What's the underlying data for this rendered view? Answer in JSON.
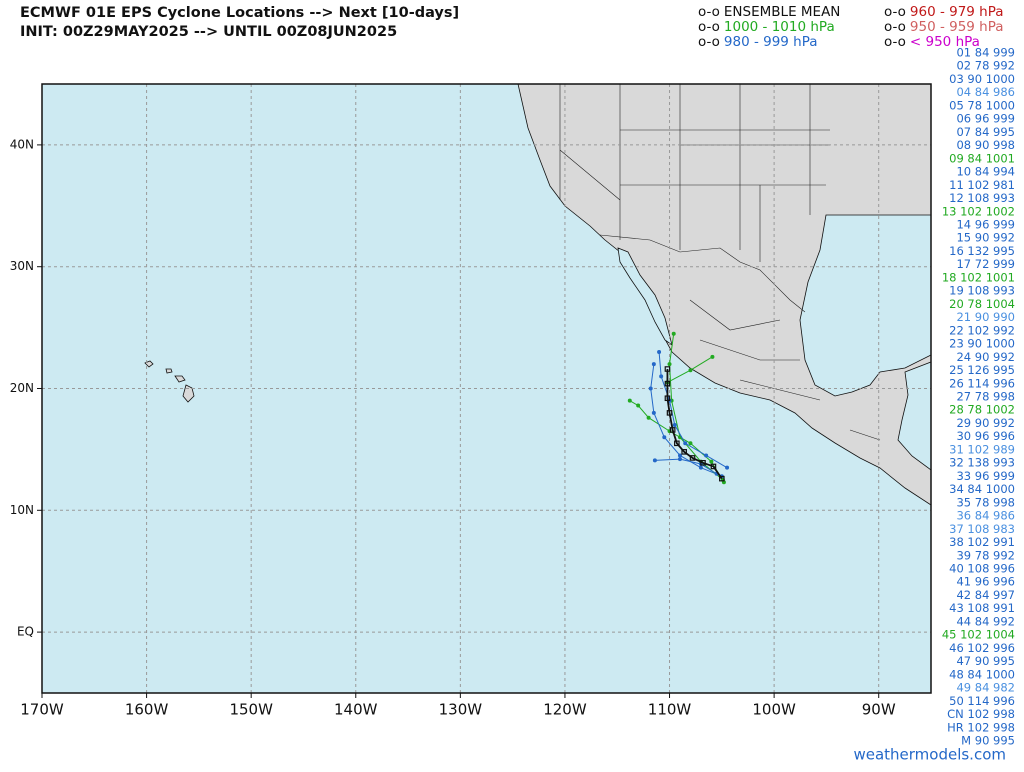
{
  "title": {
    "line1": "ECMWF 01E EPS Cyclone Locations --> Next [10-days]",
    "line2": "INIT: 00Z29MAY2025 --> UNTIL 00Z08JUN2025"
  },
  "legend": [
    {
      "marker": "o-o",
      "label": "ENSEMBLE MEAN",
      "color": "#111111"
    },
    {
      "marker": "o-o",
      "label": "1000 - 1010 hPa",
      "color": "#22aa22"
    },
    {
      "marker": "o-o",
      "label": "980 - 999 hPa",
      "color": "#2468c8"
    },
    {
      "marker": "o-o",
      "label": "960 - 979 hPa",
      "color": "#c01818"
    },
    {
      "marker": "o-o",
      "label": "950 - 959 hPa",
      "color": "#d06060"
    },
    {
      "marker": "o-o",
      "label": "< 950 hPa",
      "color": "#cc00cc"
    }
  ],
  "members": [
    {
      "text": "01 84 999",
      "color": "#2468c8"
    },
    {
      "text": "02 78 992",
      "color": "#2468c8"
    },
    {
      "text": "03 90 1000",
      "color": "#2468c8"
    },
    {
      "text": "04 84 986",
      "color": "#4a90e0"
    },
    {
      "text": "05 78 1000",
      "color": "#2468c8"
    },
    {
      "text": "06 96 999",
      "color": "#2468c8"
    },
    {
      "text": "07 84 995",
      "color": "#2468c8"
    },
    {
      "text": "08 90 998",
      "color": "#2468c8"
    },
    {
      "text": "09 84 1001",
      "color": "#22aa22"
    },
    {
      "text": "10 84 994",
      "color": "#2468c8"
    },
    {
      "text": "11 102 981",
      "color": "#2468c8"
    },
    {
      "text": "12 108 993",
      "color": "#2468c8"
    },
    {
      "text": "13 102 1002",
      "color": "#22aa22"
    },
    {
      "text": "14 96 999",
      "color": "#2468c8"
    },
    {
      "text": "15 90 992",
      "color": "#2468c8"
    },
    {
      "text": "16 132 995",
      "color": "#2468c8"
    },
    {
      "text": "17 72 999",
      "color": "#2468c8"
    },
    {
      "text": "18 102 1001",
      "color": "#22aa22"
    },
    {
      "text": "19 108 993",
      "color": "#2468c8"
    },
    {
      "text": "20 78 1004",
      "color": "#22aa22"
    },
    {
      "text": "21 90 990",
      "color": "#4a90e0"
    },
    {
      "text": "22 102 992",
      "color": "#2468c8"
    },
    {
      "text": "23 90 1000",
      "color": "#2468c8"
    },
    {
      "text": "24 90 992",
      "color": "#2468c8"
    },
    {
      "text": "25 126 995",
      "color": "#2468c8"
    },
    {
      "text": "26 114 996",
      "color": "#2468c8"
    },
    {
      "text": "27 78 998",
      "color": "#2468c8"
    },
    {
      "text": "28 78 1002",
      "color": "#22aa22"
    },
    {
      "text": "29 90 992",
      "color": "#2468c8"
    },
    {
      "text": "30 96 996",
      "color": "#2468c8"
    },
    {
      "text": "31 102 989",
      "color": "#4a90e0"
    },
    {
      "text": "32 138 993",
      "color": "#2468c8"
    },
    {
      "text": "33 96 999",
      "color": "#2468c8"
    },
    {
      "text": "34 84 1000",
      "color": "#2468c8"
    },
    {
      "text": "35 78 998",
      "color": "#2468c8"
    },
    {
      "text": "36 84 986",
      "color": "#4a90e0"
    },
    {
      "text": "37 108 983",
      "color": "#4a90e0"
    },
    {
      "text": "38 102 991",
      "color": "#2468c8"
    },
    {
      "text": "39 78 992",
      "color": "#2468c8"
    },
    {
      "text": "40 108 996",
      "color": "#2468c8"
    },
    {
      "text": "41 96 996",
      "color": "#2468c8"
    },
    {
      "text": "42 84 997",
      "color": "#2468c8"
    },
    {
      "text": "43 108 991",
      "color": "#2468c8"
    },
    {
      "text": "44 84 992",
      "color": "#2468c8"
    },
    {
      "text": "45 102 1004",
      "color": "#22aa22"
    },
    {
      "text": "46 102 996",
      "color": "#2468c8"
    },
    {
      "text": "47 90 995",
      "color": "#2468c8"
    },
    {
      "text": "48 84 1000",
      "color": "#2468c8"
    },
    {
      "text": "49 84 982",
      "color": "#4a90e0"
    },
    {
      "text": "50 114 996",
      "color": "#2468c8"
    },
    {
      "text": "CN 102 998",
      "color": "#2468c8"
    },
    {
      "text": "HR 102 998",
      "color": "#2468c8"
    },
    {
      "text": "M 90 995",
      "color": "#2468c8"
    }
  ],
  "map": {
    "xlim": [
      -170,
      -85
    ],
    "ylim": [
      -5,
      45
    ],
    "grid": true,
    "xticks": [
      {
        "value": -170,
        "label": "170W"
      },
      {
        "value": -160,
        "label": "160W"
      },
      {
        "value": -150,
        "label": "150W"
      },
      {
        "value": -140,
        "label": "140W"
      },
      {
        "value": -130,
        "label": "130W"
      },
      {
        "value": -120,
        "label": "120W"
      },
      {
        "value": -110,
        "label": "110W"
      },
      {
        "value": -100,
        "label": "100W"
      },
      {
        "value": -90,
        "label": "90W"
      }
    ],
    "yticks": [
      {
        "value": 0,
        "label": "EQ"
      },
      {
        "value": 10,
        "label": "10N"
      },
      {
        "value": 20,
        "label": "20N"
      },
      {
        "value": 30,
        "label": "30N"
      },
      {
        "value": 40,
        "label": "40N"
      }
    ],
    "member_tracks": [
      {
        "color": "#22aa22",
        "lon": [
          -104.8,
          -106,
          -108,
          -110,
          -112,
          -113,
          -113.8
        ],
        "lat": [
          12.3,
          14,
          15.5,
          16.5,
          17.6,
          18.6,
          19
        ]
      },
      {
        "color": "#2468c8",
        "lon": [
          -105,
          -107,
          -109,
          -110.5,
          -111.5,
          -111.8,
          -111.5
        ],
        "lat": [
          12.8,
          13.5,
          14.5,
          16,
          18,
          20,
          22
        ]
      },
      {
        "color": "#22aa22",
        "lon": [
          -104.9,
          -107,
          -109,
          -109.8,
          -110,
          -109.6
        ],
        "lat": [
          12.5,
          14,
          16,
          19,
          22,
          24.5
        ]
      },
      {
        "color": "#2468c8",
        "lon": [
          -105.5,
          -107,
          -109,
          -111.4
        ],
        "lat": [
          13,
          13.8,
          14.2,
          14.1
        ]
      },
      {
        "color": "#22aa22",
        "lon": [
          -110.2,
          -108,
          -105.9
        ],
        "lat": [
          20.5,
          21.5,
          22.6
        ]
      },
      {
        "color": "#2468c8",
        "lon": [
          -104.5,
          -106.5,
          -108.5,
          -109.5,
          -110,
          -110.8,
          -111
        ],
        "lat": [
          13.5,
          14.5,
          15.5,
          17,
          19,
          21,
          23
        ]
      }
    ],
    "mean_track": {
      "color": "#111111",
      "lon": [
        -105,
        -105.8,
        -106.8,
        -107.8,
        -108.6,
        -109.3,
        -109.7,
        -110,
        -110.2,
        -110.2,
        -110.2
      ],
      "lat": [
        12.6,
        13.6,
        13.9,
        14.3,
        14.8,
        15.5,
        16.6,
        18,
        19.2,
        20.4,
        21.6
      ]
    }
  },
  "footer": "weathermodels.com"
}
